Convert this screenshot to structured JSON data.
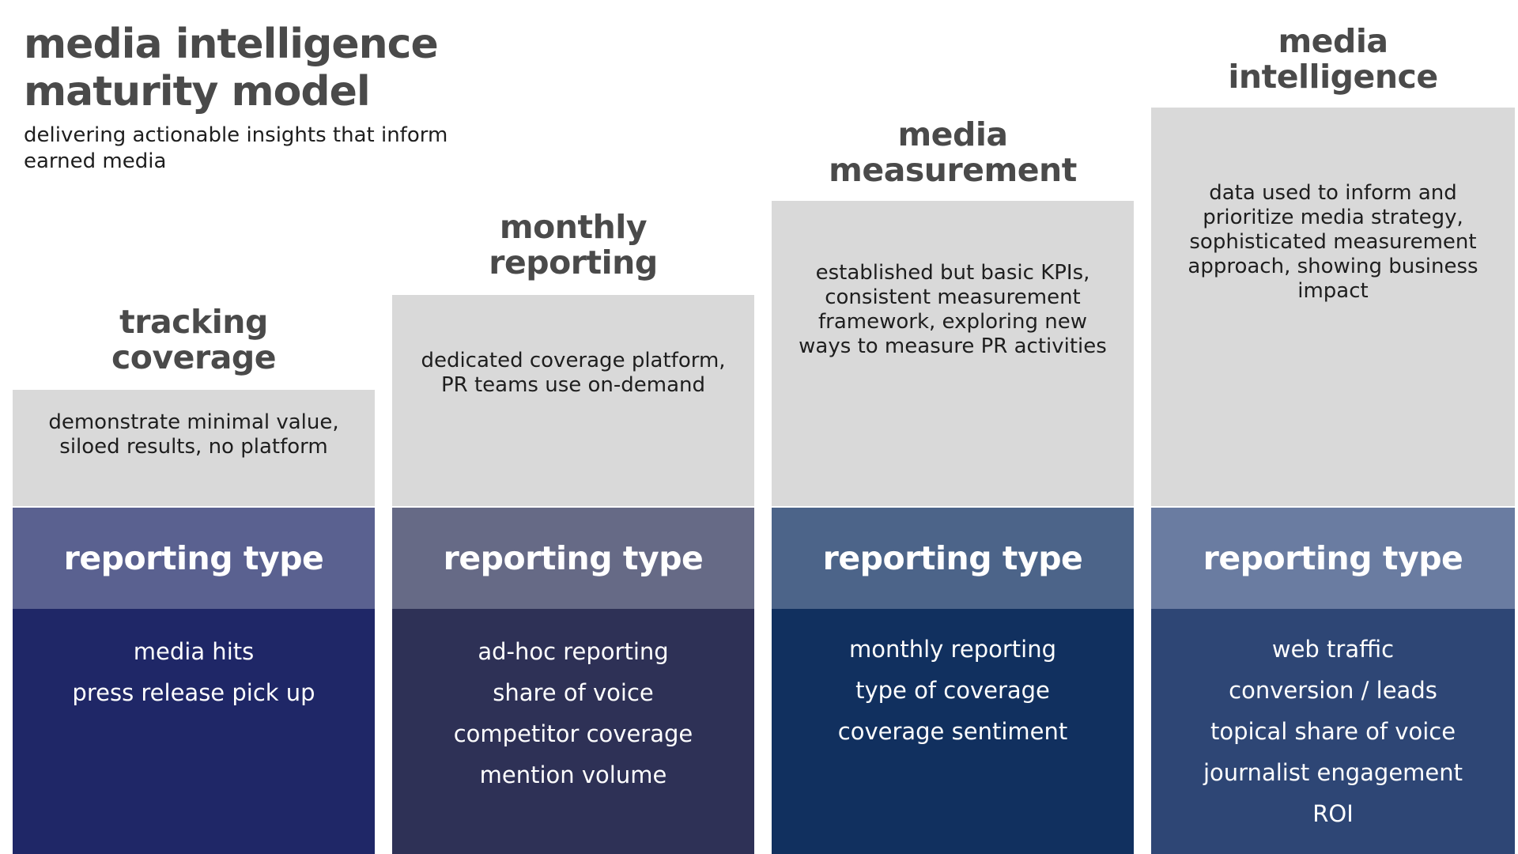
{
  "header": {
    "title_line1": "media intelligence",
    "title_line2": "maturity model",
    "subtitle": "delivering actionable insights that inform earned media"
  },
  "colors": {
    "title_text": "#4a4a4a",
    "desc_box": "#d9d9d9",
    "stage1_header": "#5a6190",
    "stage1_body": "#1f2767",
    "stage2_header": "#666a86",
    "stage2_body": "#2e3156",
    "stage3_header": "#4c6489",
    "stage3_body": "#11305f",
    "stage4_header": "#6a7ca1",
    "stage4_body": "#2e4675"
  },
  "stages": [
    {
      "title_line1": "tracking",
      "title_line2": "coverage",
      "description": "demonstrate minimal value, siloed results, no platform",
      "type_label": "reporting type",
      "types": [
        "media hits",
        "press release pick up"
      ]
    },
    {
      "title_line1": "monthly",
      "title_line2": "reporting",
      "description": "dedicated coverage platform, PR teams use on-demand",
      "type_label": "reporting type",
      "types": [
        "ad-hoc reporting",
        "share of voice",
        "competitor coverage",
        "mention volume"
      ]
    },
    {
      "title_line1": "media",
      "title_line2": "measurement",
      "description": "established but basic KPIs, consistent measurement framework, exploring new ways to measure PR activities",
      "type_label": "reporting type",
      "types": [
        "monthly reporting",
        "type of coverage",
        "coverage sentiment"
      ]
    },
    {
      "title_line1": "media",
      "title_line2": "intelligence",
      "description": "data used to inform and prioritize  media strategy, sophisticated measurement approach, showing business impact",
      "type_label": "reporting type",
      "types": [
        "web traffic",
        "conversion / leads",
        "topical share of voice",
        "journalist engagement",
        "ROI"
      ]
    }
  ]
}
